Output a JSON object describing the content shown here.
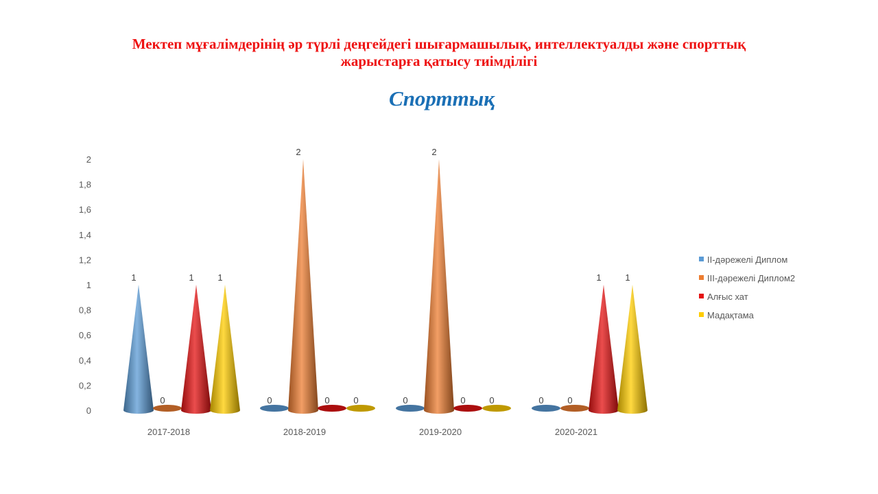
{
  "slide": {
    "title_line1": "Мектеп мұғалімдерінің әр түрлі деңгейдегі шығармашылық, интеллектуалды және спорттық",
    "title_line2": "жарыстарға қатысу тиімділігі"
  },
  "chart_data": {
    "type": "bar",
    "bar_shape": "cone",
    "title": "Спорттық",
    "categories": [
      "2017-2018",
      "2018-2019",
      "2019-2020",
      "2020-2021"
    ],
    "ylim": [
      0,
      2
    ],
    "yticks": [
      "0",
      "0,2",
      "0,4",
      "0,6",
      "0,8",
      "1",
      "1,2",
      "1,4",
      "1,6",
      "1,8",
      "2"
    ],
    "grid": false,
    "legend_position": "right",
    "data_labels": true,
    "series": [
      {
        "name": "II-дәрежелі Диплом",
        "color": "#5b9bd5",
        "values": [
          1,
          0,
          0,
          0
        ]
      },
      {
        "name": "III-дәрежелі Диплом2",
        "color": "#ed7d31",
        "values": [
          0,
          2,
          2,
          0
        ]
      },
      {
        "name": "Алғыс хат",
        "color": "#e41212",
        "values": [
          1,
          0,
          0,
          1
        ]
      },
      {
        "name": "Мадақтама",
        "color": "#ffcc00",
        "values": [
          1,
          0,
          0,
          1
        ]
      }
    ]
  }
}
